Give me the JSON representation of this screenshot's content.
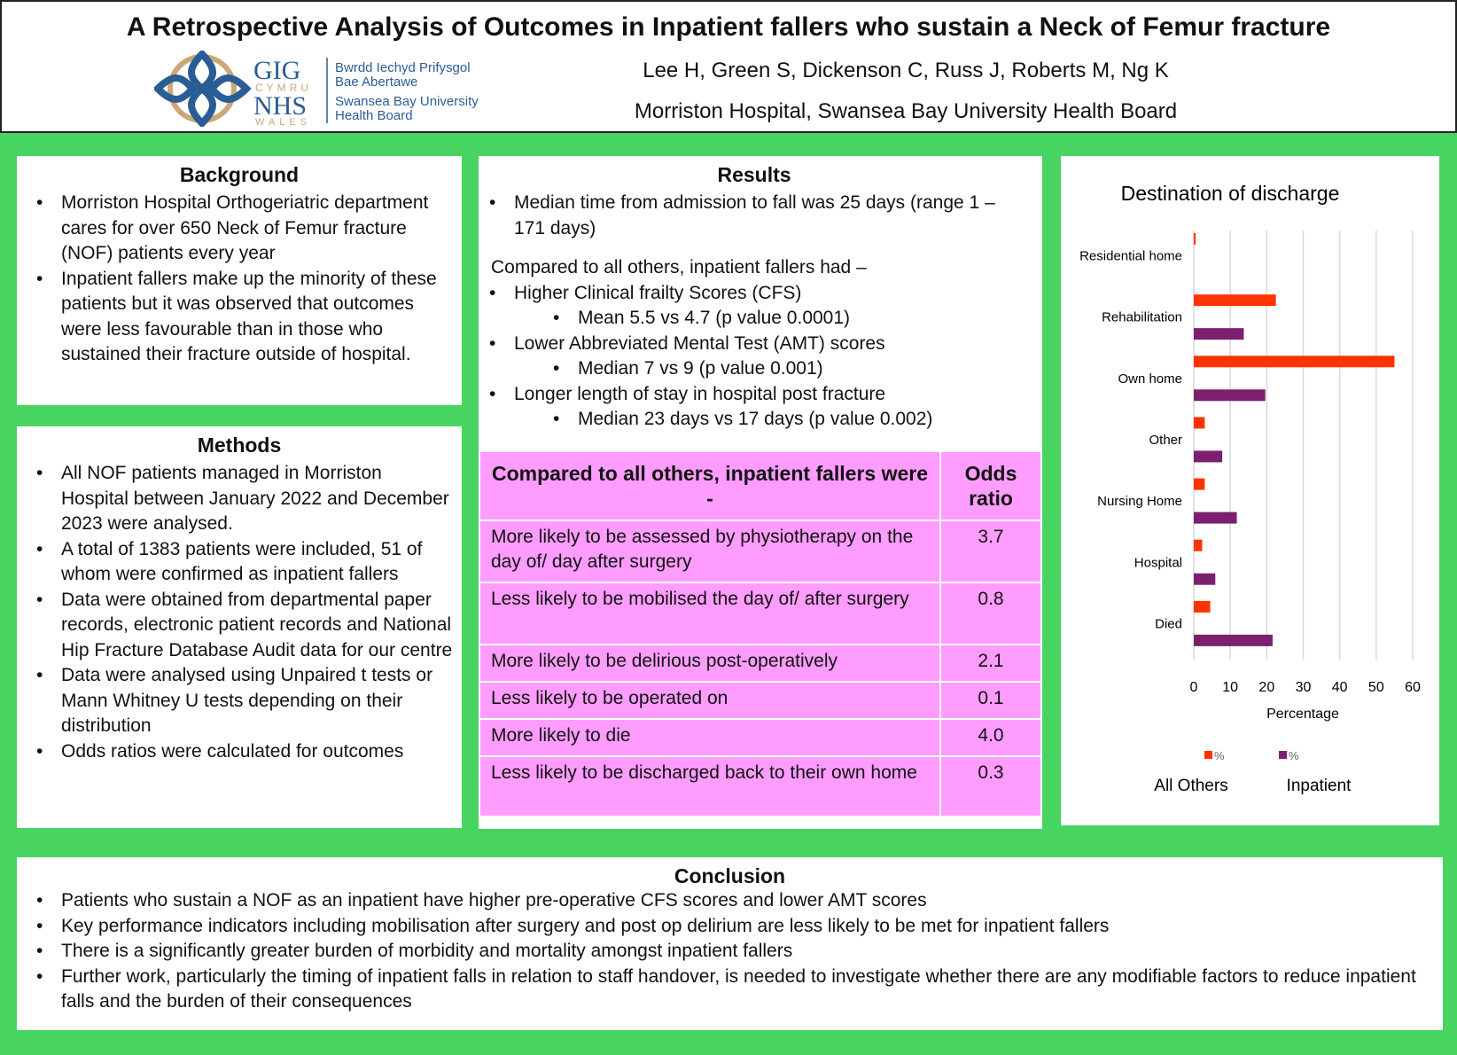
{
  "header": {
    "title": "A Retrospective Analysis of Outcomes in Inpatient fallers who sustain a Neck of Femur fracture",
    "authors": "Lee H, Green S, Dickenson C, Russ J, Roberts M, Ng K",
    "affiliation": "Morriston Hospital, Swansea Bay University Health Board",
    "logo": {
      "gig": "GIG",
      "cymru": "CYMRU",
      "nhs": "NHS",
      "wales": "WALES",
      "welsh": [
        "Bwrdd Iechyd Prifysgol",
        "Bae Abertawe"
      ],
      "english": [
        "Swansea Bay University",
        "Health Board"
      ]
    }
  },
  "background": {
    "heading": "Background",
    "items": [
      "Morriston Hospital Orthogeriatric department cares for over 650 Neck of Femur fracture (NOF) patients every year",
      "Inpatient fallers make up the minority of these  patients but it was observed that outcomes were less favourable than in those who sustained their fracture outside of hospital."
    ]
  },
  "methods": {
    "heading": "Methods",
    "items": [
      "All NOF patients managed in Morriston Hospital between January 2022 and December 2023 were analysed.",
      "A total of 1383 patients were included, 51 of whom were confirmed as inpatient fallers",
      "Data were obtained from departmental paper records, electronic patient records and National Hip Fracture Database Audit data for our centre",
      "Data were analysed using Unpaired t tests or Mann Whitney U tests depending on their distribution",
      "Odds ratios were calculated for outcomes"
    ]
  },
  "results": {
    "heading": "Results",
    "median_fall": "Median time from admission to fall was 25 days (range 1 – 171 days)",
    "compared": "Compared to all others, inpatient fallers had –",
    "points": [
      "Higher Clinical frailty Scores (CFS)",
      "Mean 5.5 vs 4.7 (p value 0.0001)",
      "Lower Abbreviated Mental Test (AMT) scores",
      "Median 7 vs 9  (p value 0.001)",
      "Longer length of stay in hospital post fracture",
      "Median 23 days vs 17 days (p value 0.002)"
    ],
    "table": {
      "header": "Compared to all others, inpatient fallers were -",
      "or_header": "Odds ratio",
      "rows": [
        {
          "outcome": "More likely to be assessed by physiotherapy on the day of/ day after surgery",
          "or": "3.7"
        },
        {
          "outcome": "Less likely to be mobilised the day of/ after surgery",
          "or": "0.8"
        },
        {
          "outcome": "More likely to be delirious post-operatively",
          "or": "2.1"
        },
        {
          "outcome": "Less likely to be operated on",
          "or": "0.1"
        },
        {
          "outcome": "More likely to die",
          "or": "4.0"
        },
        {
          "outcome": "Less likely to be discharged back to their own home",
          "or": "0.3"
        }
      ]
    }
  },
  "chart_data": {
    "type": "bar",
    "orientation": "horizontal",
    "title": "Destination of discharge",
    "xlabel": "Percentage",
    "xlim": [
      0,
      60
    ],
    "xticks": [
      "0",
      "10",
      "20",
      "30",
      "40",
      "50",
      "60"
    ],
    "grid": true,
    "categories": [
      "Residential home",
      "Rehabilitation",
      "Own home",
      "Other",
      "Nursing Home",
      "Hospital",
      "Died"
    ],
    "series": [
      {
        "name": "All Others",
        "legend_mark": "%",
        "color": "#ff3300",
        "values": [
          0.5,
          22.5,
          55,
          3,
          3,
          2.3,
          4.5
        ]
      },
      {
        "name": "Inpatient",
        "legend_mark": "%",
        "color": "#7b1f6e",
        "values": [
          0,
          13.7,
          19.6,
          7.8,
          11.8,
          5.9,
          21.6
        ]
      }
    ]
  },
  "conclusion": {
    "heading": "Conclusion",
    "items": [
      "Patients who sustain a NOF as an inpatient have higher pre-operative CFS scores and lower AMT scores",
      "Key performance indicators including mobilisation after surgery and post op delirium are less likely to be met for inpatient fallers",
      "There is a significantly greater burden of morbidity and mortality amongst inpatient fallers",
      "Further work, particularly the timing of inpatient falls in relation to staff handover, is needed to investigate whether there are any modifiable factors to reduce inpatient falls and the burden of their consequences"
    ]
  }
}
